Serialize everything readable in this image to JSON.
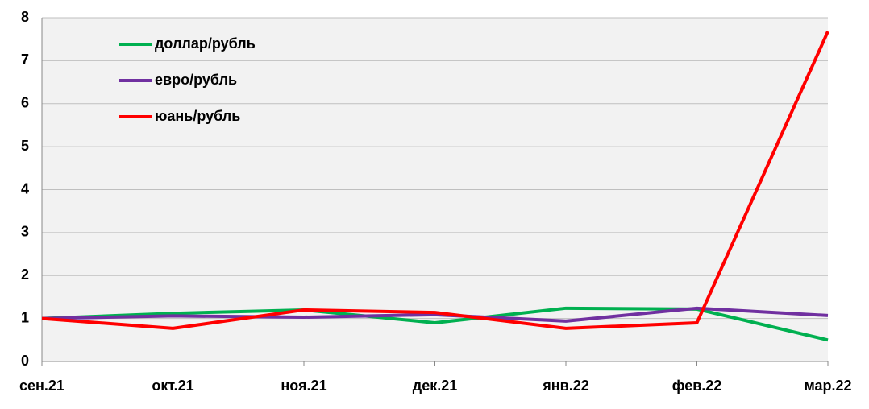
{
  "chart_data": {
    "type": "line",
    "categories": [
      "сен.21",
      "окт.21",
      "ноя.21",
      "дек.21",
      "янв.22",
      "фев.22",
      "мар.22"
    ],
    "series": [
      {
        "name": "доллар/рубль",
        "color": "#00b050",
        "values": [
          1.0,
          1.12,
          1.2,
          0.9,
          1.24,
          1.22,
          0.5
        ]
      },
      {
        "name": "евро/рубль",
        "color": "#7030a0",
        "values": [
          1.0,
          1.06,
          1.03,
          1.09,
          0.94,
          1.24,
          1.07
        ]
      },
      {
        "name": "юань/рубль",
        "color": "#ff0000",
        "values": [
          1.0,
          0.77,
          1.2,
          1.14,
          0.77,
          0.9,
          7.68
        ]
      }
    ],
    "ylim": [
      0,
      8
    ],
    "yticks": [
      0,
      1,
      2,
      3,
      4,
      5,
      6,
      7,
      8
    ],
    "grid": true,
    "legend": "top-left"
  }
}
